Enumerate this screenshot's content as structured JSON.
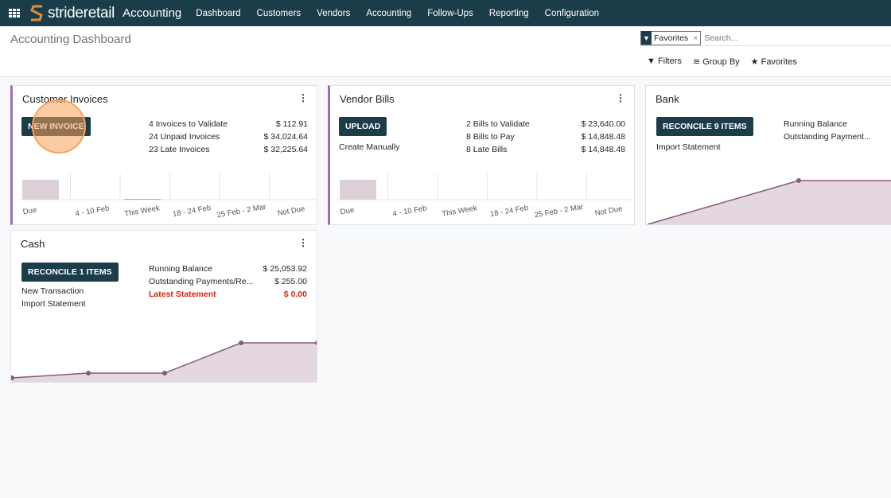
{
  "navbar": {
    "brand_1": "stride",
    "brand_2": "retail",
    "app": "Accounting",
    "menu": [
      "Dashboard",
      "Customers",
      "Vendors",
      "Accounting",
      "Follow-Ups",
      "Reporting",
      "Configuration"
    ]
  },
  "control_panel": {
    "title": "Accounting Dashboard",
    "facet": "Favorites",
    "search_placeholder": "Search...",
    "filters": "Filters",
    "group_by": "Group By",
    "favorites": "Favorites"
  },
  "colors": {
    "navbar": "#1b3d4a",
    "accent": "#9c6fb5",
    "chart_fill": "#e4d7e0",
    "chart_line": "#875a7b",
    "danger": "#d9230f"
  },
  "customer_invoices": {
    "title": "Customer Invoices",
    "button": "NEW INVOICE",
    "stats": [
      {
        "label": "4 Invoices to Validate",
        "value": "$ 112.91"
      },
      {
        "label": "24 Unpaid Invoices",
        "value": "$ 34,024.64"
      },
      {
        "label": "23 Late Invoices",
        "value": "$ 32,225.64"
      }
    ],
    "chart_labels": [
      "Due",
      "4 - 10 Feb",
      "This Week",
      "18 - 24 Feb",
      "25 Feb - 2 Mar",
      "Not Due"
    ]
  },
  "vendor_bills": {
    "title": "Vendor Bills",
    "button": "UPLOAD",
    "link": "Create Manually",
    "stats": [
      {
        "label": "2 Bills to Validate",
        "value": "$ 23,640.00"
      },
      {
        "label": "8 Bills to Pay",
        "value": "$ 14,848.48"
      },
      {
        "label": "8 Late Bills",
        "value": "$ 14,848.48"
      }
    ],
    "chart_labels": [
      "Due",
      "4 - 10 Feb",
      "This Week",
      "18 - 24 Feb",
      "25 Feb - 2 Mar",
      "Not Due"
    ]
  },
  "bank": {
    "title": "Bank",
    "button": "RECONCILE 9 ITEMS",
    "link": "Import Statement",
    "stats": [
      "Running Balance",
      "Outstanding Payment..."
    ]
  },
  "cash": {
    "title": "Cash",
    "button": "RECONCILE 1 ITEMS",
    "links": [
      "New Transaction",
      "Import Statement"
    ],
    "stats": [
      {
        "label": "Running Balance",
        "value": "$ 25,053.92"
      },
      {
        "label": "Outstanding Payments/Re...",
        "value": "$ 255.00"
      },
      {
        "label": "Latest Statement",
        "value": "$ 0.00"
      }
    ]
  }
}
